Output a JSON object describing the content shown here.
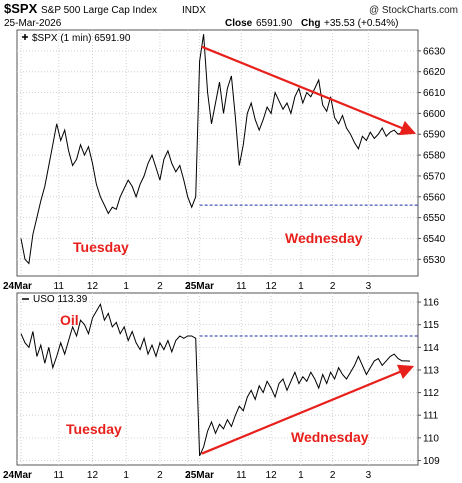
{
  "header": {
    "symbol": "$SPX",
    "name": "S&P 500 Large Cap Index",
    "exchange": "INDX",
    "date": "25-Mar-2026",
    "close_label": "Close",
    "close_value": "6591.90",
    "change_label": "Chg",
    "change_value": "+35.53 (+0.54%)",
    "watermark": "@ StockCharts.com"
  },
  "x_axis_labels": [
    "24Mar",
    "11",
    "12",
    "1",
    "2",
    "3",
    "25Mar",
    "11",
    "12",
    "1",
    "2",
    "3"
  ],
  "colors": {
    "price_line": "#000000",
    "annotation": "#e8201c",
    "reference_line": "#1f2fa8",
    "grid": "#c8c8c8",
    "frame": "#555555"
  },
  "chart_data": [
    {
      "type": "line",
      "panel": "top",
      "title": "$SPX (1 min) 6591.90",
      "series": [
        {
          "name": "$SPX (1 min)",
          "x": [
            0,
            4,
            8,
            12,
            16,
            20,
            24,
            28,
            32,
            36,
            40,
            44,
            48,
            52,
            56,
            60,
            64,
            68,
            72,
            76,
            80,
            84,
            88,
            92,
            96,
            100,
            104,
            108,
            112,
            116,
            120,
            124,
            128,
            132,
            136,
            140,
            144,
            148,
            152,
            156,
            160,
            164,
            168,
            172,
            176,
            180,
            184,
            188,
            192,
            196,
            200,
            204,
            208,
            212,
            216,
            220,
            224,
            228,
            232,
            236,
            240,
            244,
            248,
            252,
            256,
            260,
            264,
            268,
            272,
            276,
            280,
            284,
            288,
            292,
            296,
            300,
            304,
            308,
            312,
            316,
            320,
            324,
            328,
            332,
            336,
            340,
            344,
            348,
            352,
            356,
            360,
            364,
            368,
            372,
            376,
            380,
            384,
            388,
            392
          ],
          "values": [
            6540,
            6530,
            6528,
            6542,
            6550,
            6558,
            6565,
            6575,
            6585,
            6595,
            6587,
            6592,
            6582,
            6575,
            6578,
            6585,
            6580,
            6584,
            6576,
            6566,
            6560,
            6556,
            6552,
            6555,
            6554,
            6560,
            6564,
            6568,
            6565,
            6560,
            6566,
            6570,
            6576,
            6580,
            6574,
            6568,
            6578,
            6582,
            6576,
            6572,
            6575,
            6568,
            6560,
            6555,
            6560,
            6625,
            6638,
            6610,
            6595,
            6605,
            6615,
            6600,
            6612,
            6618,
            6598,
            6575,
            6585,
            6600,
            6605,
            6597,
            6592,
            6597,
            6603,
            6600,
            6610,
            6606,
            6602,
            6605,
            6600,
            6608,
            6612,
            6605,
            6610,
            6608,
            6612,
            6616,
            6604,
            6601,
            6608,
            6598,
            6595,
            6599,
            6593,
            6590,
            6586,
            6583,
            6589,
            6587,
            6591,
            6588,
            6590,
            6593,
            6589,
            6591,
            6592,
            6590,
            6591,
            6592,
            6592
          ],
          "color": "#000000"
        }
      ],
      "x_session_starts": {
        "Tuesday": 0,
        "Wednesday": 180
      },
      "y_ticks": [
        6530,
        6540,
        6550,
        6560,
        6570,
        6580,
        6590,
        6600,
        6610,
        6620,
        6630
      ],
      "ylim": [
        6522,
        6640
      ],
      "reference_line": 6556,
      "trend_arrow": {
        "from": [
          182,
          6632
        ],
        "to": [
          394,
          6591
        ]
      },
      "annotations": [
        "Tuesday",
        "Wednesday"
      ],
      "grid": true
    },
    {
      "type": "line",
      "panel": "bottom",
      "title": "USO 113.39",
      "series": [
        {
          "name": "USO",
          "x": [
            0,
            4,
            8,
            12,
            16,
            20,
            24,
            28,
            32,
            36,
            40,
            44,
            48,
            52,
            56,
            60,
            64,
            68,
            72,
            76,
            80,
            84,
            88,
            92,
            96,
            100,
            104,
            108,
            112,
            116,
            120,
            124,
            128,
            132,
            136,
            140,
            144,
            148,
            152,
            156,
            160,
            164,
            168,
            172,
            176,
            180,
            184,
            188,
            192,
            196,
            200,
            204,
            208,
            212,
            216,
            220,
            224,
            228,
            232,
            236,
            240,
            244,
            248,
            252,
            256,
            260,
            264,
            268,
            272,
            276,
            280,
            284,
            288,
            292,
            296,
            300,
            304,
            308,
            312,
            316,
            320,
            324,
            328,
            332,
            336,
            340,
            344,
            348,
            352,
            356,
            360,
            364,
            368,
            372,
            376,
            380,
            384,
            388,
            392
          ],
          "values": [
            114.6,
            114.2,
            114.0,
            114.7,
            113.6,
            114.1,
            113.3,
            114.0,
            113.1,
            113.6,
            114.2,
            113.7,
            114.3,
            114.9,
            114.5,
            115.2,
            115.0,
            114.6,
            115.3,
            115.6,
            115.9,
            115.2,
            115.5,
            114.9,
            115.1,
            114.6,
            114.9,
            114.3,
            114.7,
            114.2,
            113.9,
            114.4,
            113.7,
            114.1,
            113.6,
            114.2,
            113.9,
            114.3,
            113.8,
            114.3,
            114.5,
            114.4,
            114.5,
            114.5,
            114.4,
            109.2,
            109.6,
            110.3,
            110.7,
            110.2,
            110.6,
            110.4,
            110.8,
            110.5,
            111.0,
            111.4,
            111.2,
            111.8,
            112.1,
            111.7,
            112.3,
            112.0,
            112.5,
            112.2,
            111.8,
            112.4,
            112.6,
            112.1,
            112.5,
            112.9,
            112.4,
            112.7,
            112.5,
            112.9,
            112.6,
            112.2,
            112.8,
            112.4,
            112.9,
            112.6,
            113.1,
            112.8,
            112.6,
            112.9,
            113.2,
            113.6,
            113.2,
            112.8,
            113.1,
            113.4,
            113.5,
            113.2,
            113.4,
            113.6,
            113.7,
            113.5,
            113.4,
            113.4,
            113.39
          ],
          "color": "#000000"
        }
      ],
      "x_session_starts": {
        "Tuesday": 0,
        "Wednesday": 180
      },
      "y_ticks": [
        109,
        110,
        111,
        112,
        113,
        114,
        115,
        116
      ],
      "ylim": [
        108.8,
        116.4
      ],
      "reference_line": 114.5,
      "trend_arrow": {
        "from": [
          182,
          109.3
        ],
        "to": [
          392,
          113.1
        ]
      },
      "annotations": [
        "Oil",
        "Tuesday",
        "Wednesday"
      ],
      "grid": true
    }
  ]
}
